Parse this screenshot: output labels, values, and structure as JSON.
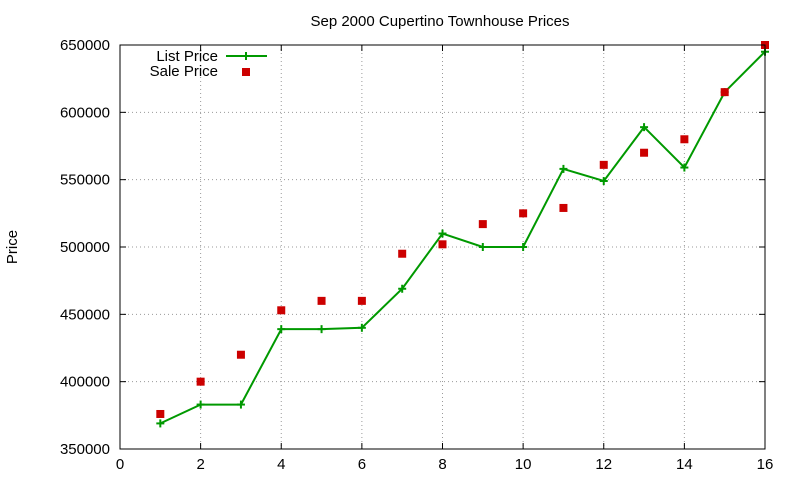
{
  "chart_data": {
    "type": "line",
    "title": "Sep 2000 Cupertino Townhouse Prices",
    "xlabel": "",
    "ylabel": "Price",
    "xlim": [
      0,
      16
    ],
    "ylim": [
      350000,
      650000
    ],
    "x_ticks": [
      "0",
      "2",
      "4",
      "6",
      "8",
      "10",
      "12",
      "14",
      "16"
    ],
    "y_ticks": [
      "350000",
      "400000",
      "450000",
      "500000",
      "550000",
      "600000",
      "650000"
    ],
    "grid": true,
    "legend": "top-left",
    "series": [
      {
        "name": "List Price",
        "style": "line+plus",
        "color": "#009900",
        "x": [
          1,
          2,
          3,
          4,
          5,
          6,
          7,
          8,
          9,
          10,
          11,
          12,
          13,
          14,
          15,
          16
        ],
        "y": [
          369000,
          383000,
          383000,
          439000,
          439000,
          440000,
          469000,
          510000,
          500000,
          500000,
          558000,
          549000,
          589000,
          559000,
          615000,
          645000
        ]
      },
      {
        "name": "Sale Price",
        "style": "squares",
        "color": "#cc0000",
        "x": [
          1,
          2,
          3,
          4,
          5,
          6,
          7,
          8,
          9,
          10,
          11,
          12,
          13,
          14,
          15,
          16
        ],
        "y": [
          376000,
          400000,
          420000,
          453000,
          460000,
          460000,
          495000,
          502000,
          517000,
          525000,
          529000,
          561000,
          570000,
          580000,
          615000,
          650000
        ]
      }
    ]
  }
}
